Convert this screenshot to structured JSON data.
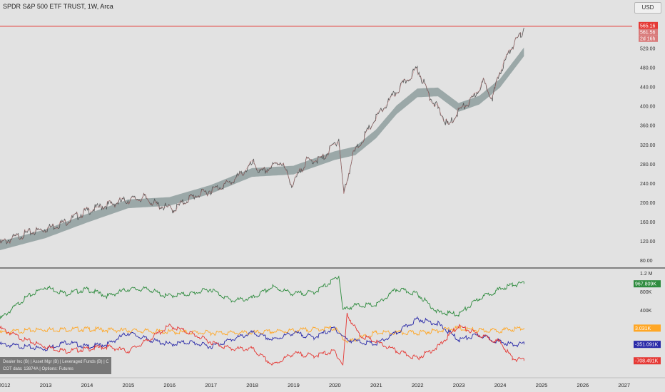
{
  "header": {
    "title": "SPDR S&P 500 ETF TRUST, 1W, Arca",
    "currency": "USD"
  },
  "price_badges": {
    "last": "565.16",
    "mid": "561.56",
    "countdown": "2d 16h"
  },
  "cot_badges": {
    "dealer": "967.809K",
    "asset_mgr": "3.031K",
    "lev_funds": "-351.091K",
    "others": "-708.491K"
  },
  "legend": {
    "line1": "Dealer Inc (B) | Asset Mgr (B) | Leveraged Funds (B) | Others (O)",
    "line2": "COT data: 13874A | Options: Futures"
  },
  "colors": {
    "background": "#e2e2e2",
    "price_line": "#e53935",
    "band": "#8e9e9e",
    "dealer": "#2e8b3e",
    "asset_mgr": "#ffa726",
    "lev_funds": "#2a2aa8",
    "others": "#e53935"
  },
  "chart_data": [
    {
      "type": "line",
      "title": "SPDR S&P 500 ETF TRUST, 1W, Arca",
      "ylim": [
        70,
        590
      ],
      "ticks_y": [
        "80.00",
        "120.00",
        "160.00",
        "200.00",
        "240.00",
        "280.00",
        "320.00",
        "360.00",
        "400.00",
        "440.00",
        "480.00",
        "520.00"
      ],
      "x_labels": [
        "2012",
        "2013",
        "2014",
        "2015",
        "2016",
        "2017",
        "2018",
        "2019",
        "2020",
        "2021",
        "2022",
        "2023",
        "2024",
        "2025",
        "2026",
        "2027"
      ],
      "series": [
        {
          "values_x": [
            2011.9,
            2012.5,
            2013.0,
            2013.5,
            2014.0,
            2014.5,
            2015.0,
            2015.4,
            2015.7,
            2016.1,
            2016.5,
            2017.0,
            2017.5,
            2018.05,
            2018.2,
            2018.7,
            2018.98,
            2019.3,
            2019.7,
            2020.1,
            2020.22,
            2020.45,
            2021.0,
            2021.5,
            2022.0,
            2022.3,
            2022.5,
            2022.75,
            2023.0,
            2023.3,
            2023.6,
            2023.82,
            2024.0,
            2024.3,
            2024.5,
            2024.58
          ],
          "values_y": [
            115,
            135,
            145,
            160,
            182,
            195,
            205,
            210,
            195,
            185,
            210,
            225,
            242,
            282,
            260,
            285,
            235,
            285,
            290,
            332,
            218,
            300,
            375,
            430,
            478,
            420,
            395,
            358,
            390,
            410,
            450,
            418,
            470,
            525,
            545,
            562
          ]
        }
      ],
      "band_mid": {
        "values_x": [
          2011.9,
          2013.0,
          2014.0,
          2015.0,
          2016.0,
          2017.0,
          2018.0,
          2019.0,
          2020.0,
          2020.5,
          2021.0,
          2021.5,
          2022.0,
          2022.5,
          2023.0,
          2023.5,
          2024.0,
          2024.58
        ],
        "values_y": [
          113,
          138,
          170,
          200,
          205,
          230,
          265,
          270,
          300,
          310,
          345,
          395,
          430,
          432,
          400,
          415,
          450,
          515
        ]
      },
      "markers": {
        "last_price": 565.16
      }
    },
    {
      "type": "line",
      "title": "",
      "ylim": [
        -1000000,
        1250000
      ],
      "ticks_y": [
        "1.2 M",
        "800K",
        "400K"
      ],
      "series": [
        {
          "name": "Dealer Inc",
          "values_x": [
            2011.9,
            2012.5,
            2013.0,
            2013.5,
            2014.0,
            2014.5,
            2015.0,
            2015.5,
            2015.9,
            2016.5,
            2017.0,
            2017.5,
            2018.0,
            2018.5,
            2019.0,
            2019.5,
            2019.9,
            2020.1,
            2020.2,
            2020.5,
            2021.0,
            2021.5,
            2022.0,
            2022.5,
            2023.0,
            2023.5,
            2024.0,
            2024.3,
            2024.58
          ],
          "values_y": [
            200000,
            650000,
            900000,
            750000,
            850000,
            700000,
            850000,
            850000,
            700000,
            750000,
            850000,
            600000,
            650000,
            900000,
            750000,
            780000,
            1000000,
            1150000,
            400000,
            500000,
            500000,
            850000,
            750000,
            350000,
            300000,
            650000,
            850000,
            950000,
            967809
          ]
        },
        {
          "name": "Asset Mgr",
          "values_x": [
            2011.9,
            2012.5,
            2013.0,
            2014.0,
            2015.0,
            2016.0,
            2017.0,
            2018.0,
            2019.0,
            2020.0,
            2020.3,
            2021.0,
            2022.0,
            2022.5,
            2023.0,
            2023.5,
            2024.0,
            2024.58
          ],
          "values_y": [
            -100000,
            -50000,
            -30000,
            -20000,
            -50000,
            -80000,
            -100000,
            -100000,
            -50000,
            0,
            -300000,
            -100000,
            -100000,
            -50000,
            0,
            -50000,
            -50000,
            3031
          ]
        },
        {
          "name": "Leveraged Funds",
          "values_x": [
            2011.9,
            2012.5,
            2013.0,
            2013.5,
            2014.0,
            2014.5,
            2015.0,
            2015.5,
            2016.0,
            2016.5,
            2017.0,
            2017.5,
            2018.0,
            2018.5,
            2019.0,
            2019.5,
            2020.0,
            2020.3,
            2021.0,
            2021.5,
            2022.0,
            2022.5,
            2023.0,
            2023.5,
            2024.0,
            2024.3,
            2024.58
          ],
          "values_y": [
            -350000,
            -400000,
            -450000,
            -300000,
            -400000,
            -350000,
            -100000,
            -250000,
            -350000,
            -300000,
            -400000,
            -250000,
            -100000,
            -250000,
            -100000,
            -200000,
            0,
            -250000,
            -350000,
            -100000,
            200000,
            100000,
            -250000,
            -150000,
            -300000,
            -350000,
            -351091
          ]
        },
        {
          "name": "Others",
          "values_x": [
            2011.9,
            2012.5,
            2013.0,
            2013.5,
            2014.0,
            2014.5,
            2015.0,
            2015.5,
            2016.0,
            2016.5,
            2017.0,
            2017.5,
            2018.0,
            2018.5,
            2019.0,
            2019.5,
            2020.0,
            2020.2,
            2020.3,
            2020.6,
            2021.0,
            2021.5,
            2022.0,
            2022.5,
            2023.0,
            2023.5,
            2024.0,
            2024.3,
            2024.58
          ],
          "values_y": [
            0,
            -250000,
            -400000,
            -500000,
            -450000,
            -400000,
            -500000,
            -250000,
            50000,
            -100000,
            -300000,
            -450000,
            -450000,
            -800000,
            -550000,
            -600000,
            -500000,
            -800000,
            300000,
            -150000,
            -300000,
            -500000,
            -650000,
            -400000,
            50000,
            -150000,
            -300000,
            -650000,
            -708491
          ]
        }
      ]
    }
  ]
}
